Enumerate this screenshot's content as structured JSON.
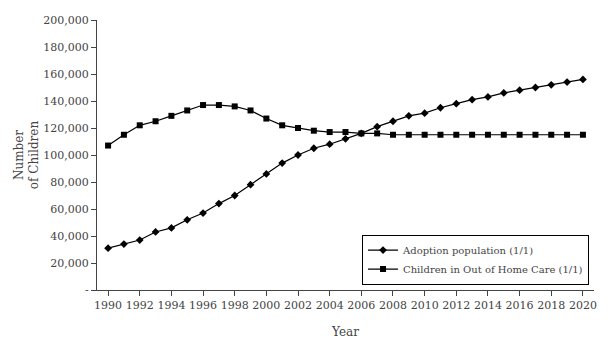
{
  "chart_data": {
    "type": "line",
    "xlabel": "Year",
    "ylabel": [
      "Number",
      "of Children"
    ],
    "x": [
      1990,
      1991,
      1992,
      1993,
      1994,
      1995,
      1996,
      1997,
      1998,
      1999,
      2000,
      2001,
      2002,
      2003,
      2004,
      2005,
      2006,
      2007,
      2008,
      2009,
      2010,
      2011,
      2012,
      2013,
      2014,
      2015,
      2016,
      2017,
      2018,
      2019,
      2020
    ],
    "series": [
      {
        "name": "Adoption population (1/1)",
        "color": "#000000",
        "marker": "diamond",
        "values": [
          31000,
          34000,
          37000,
          43000,
          46000,
          52000,
          57000,
          64000,
          70000,
          78000,
          86000,
          94000,
          100000,
          105000,
          108000,
          112000,
          116000,
          121000,
          125000,
          129000,
          131000,
          135000,
          138000,
          141000,
          143000,
          146000,
          148000,
          150000,
          152000,
          154000,
          156000
        ]
      },
      {
        "name": "Children in Out of Home Care (1/1)",
        "color": "#000000",
        "marker": "square",
        "values": [
          107000,
          115000,
          122000,
          125000,
          129000,
          133000,
          137000,
          137000,
          136000,
          133000,
          127000,
          122000,
          120000,
          118000,
          117000,
          117000,
          116000,
          116000,
          115000,
          115000,
          115000,
          115000,
          115000,
          115000,
          115000,
          115000,
          115000,
          115000,
          115000,
          115000,
          115000
        ]
      }
    ],
    "xlim": [
      1989.3,
      2020.7
    ],
    "xticks": [
      1990,
      1992,
      1994,
      1996,
      1998,
      2000,
      2002,
      2004,
      2006,
      2008,
      2010,
      2012,
      2014,
      2016,
      2018,
      2020
    ],
    "ylim": [
      0,
      200000
    ],
    "yticks": [
      {
        "value": 0,
        "label": "-"
      },
      {
        "value": 20000,
        "label": "20,000"
      },
      {
        "value": 40000,
        "label": "40,000"
      },
      {
        "value": 60000,
        "label": "60,000"
      },
      {
        "value": 80000,
        "label": "80,000"
      },
      {
        "value": 100000,
        "label": "100,000"
      },
      {
        "value": 120000,
        "label": "120,000"
      },
      {
        "value": 140000,
        "label": "140,000"
      },
      {
        "value": 160000,
        "label": "160,000"
      },
      {
        "value": 180000,
        "label": "180,000"
      },
      {
        "value": 200000,
        "label": "200,000"
      }
    ],
    "legend": "lower right",
    "grid": false
  }
}
